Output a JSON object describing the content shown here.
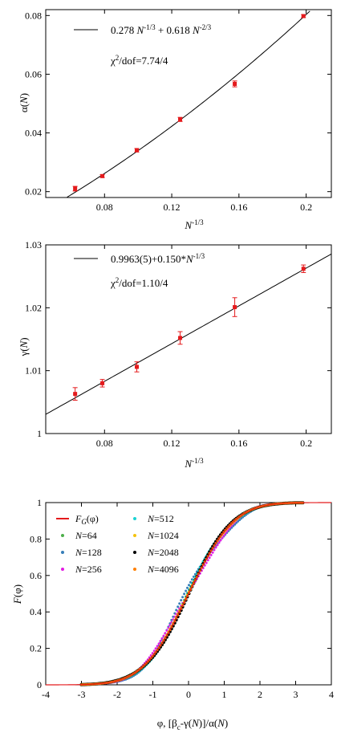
{
  "chart_data": [
    {
      "type": "scatter",
      "ylabel": "α(N)",
      "xlabel": "N^-1/3",
      "xlim": [
        0.045,
        0.215
      ],
      "ylim": [
        0.018,
        0.082
      ],
      "xticks": [
        "0.08",
        "0.12",
        "0.16",
        "0.2"
      ],
      "yticks": [
        "0.02",
        "0.04",
        "0.06",
        "0.08"
      ],
      "xtick_values": [
        0.08,
        0.12,
        0.16,
        0.2
      ],
      "ytick_values": [
        0.02,
        0.04,
        0.06,
        0.08
      ],
      "points": [
        {
          "x": 0.0625,
          "y": 0.021,
          "err": 0.0008
        },
        {
          "x": 0.0787,
          "y": 0.0253,
          "err": 0.0005
        },
        {
          "x": 0.0992,
          "y": 0.0341,
          "err": 0.0006
        },
        {
          "x": 0.125,
          "y": 0.0446,
          "err": 0.0007
        },
        {
          "x": 0.1575,
          "y": 0.0567,
          "err": 0.001
        },
        {
          "x": 0.1984,
          "y": 0.0798,
          "err": 0.0005
        }
      ],
      "fit": {
        "a": 0.278,
        "b": 0.618
      },
      "legend_line": "0.278 N^-1/3 + 0.618 N^-2/3",
      "legend_chi": "χ²/dof=7.74/4"
    },
    {
      "type": "scatter",
      "ylabel": "γ(N)",
      "xlabel": "N^-1/3",
      "xlim": [
        0.045,
        0.215
      ],
      "ylim": [
        1.0,
        1.03
      ],
      "xticks": [
        "0.08",
        "0.12",
        "0.16",
        "0.2"
      ],
      "yticks": [
        "1",
        "1.01",
        "1.02",
        "1.03"
      ],
      "xtick_values": [
        0.08,
        0.12,
        0.16,
        0.2
      ],
      "ytick_values": [
        1.0,
        1.01,
        1.02,
        1.03
      ],
      "points": [
        {
          "x": 0.0625,
          "y": 1.0063,
          "err": 0.001
        },
        {
          "x": 0.0787,
          "y": 1.008,
          "err": 0.0006
        },
        {
          "x": 0.0992,
          "y": 1.0106,
          "err": 0.0008
        },
        {
          "x": 0.125,
          "y": 1.0152,
          "err": 0.001
        },
        {
          "x": 0.1575,
          "y": 1.0201,
          "err": 0.0015
        },
        {
          "x": 0.1984,
          "y": 1.0262,
          "err": 0.0006
        }
      ],
      "fit": {
        "a": 0.9963,
        "b": 0.15
      },
      "legend_line": "0.9963(5)+0.150*N^-1/3",
      "legend_chi": "χ²/dof=1.10/4"
    },
    {
      "type": "line",
      "ylabel": "F(φ)",
      "xlabel": "φ, [βc-γ(N)]/α(N)",
      "xlim": [
        -4,
        4
      ],
      "ylim": [
        0,
        1
      ],
      "xticks": [
        "-4",
        "-3",
        "-2",
        "-1",
        "0",
        "1",
        "2",
        "3",
        "4"
      ],
      "yticks": [
        "0",
        "0.2",
        "0.4",
        "0.6",
        "0.8",
        "1"
      ],
      "xtick_values": [
        -4,
        -3,
        -2,
        -1,
        0,
        1,
        2,
        3,
        4
      ],
      "ytick_values": [
        0,
        0.2,
        0.4,
        0.6,
        0.8,
        1
      ],
      "series": [
        {
          "name": "F_G(φ)",
          "color": "#e41a1c"
        },
        {
          "name": "N=64",
          "color": "#4daf4a",
          "shift": 0.05
        },
        {
          "name": "N=128",
          "color": "#377eb8",
          "shift": 0.12
        },
        {
          "name": "N=256",
          "color": "#e31ae3",
          "shift": 0.08
        },
        {
          "name": "N=512",
          "color": "#1bd3d3",
          "shift": -0.05
        },
        {
          "name": "N=1024",
          "color": "#f4c20d",
          "shift": -0.02
        },
        {
          "name": "N=2048",
          "color": "#000000",
          "shift": 0.03
        },
        {
          "name": "N=4096",
          "color": "#ff7f00",
          "shift": 0.0
        }
      ]
    }
  ]
}
